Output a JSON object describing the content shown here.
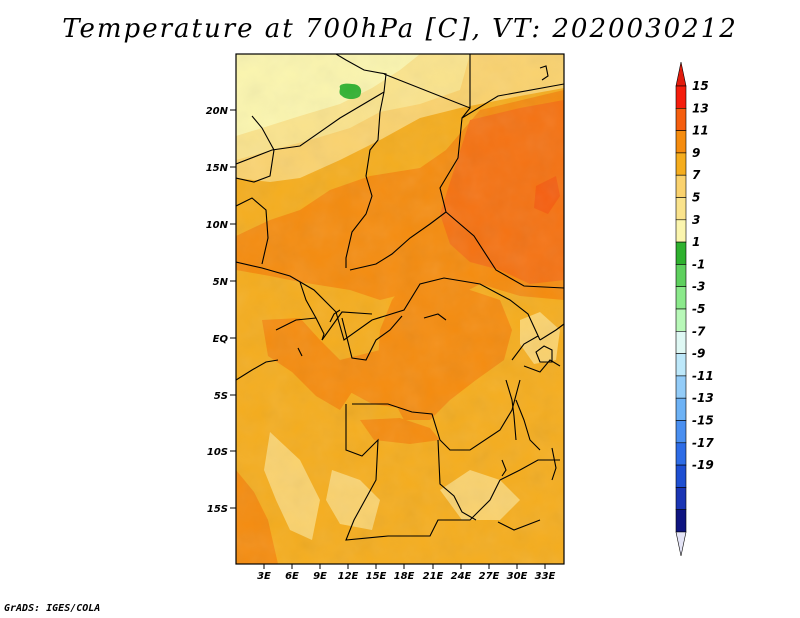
{
  "title": "Temperature at 700hPa [C], VT: 2020030212",
  "credit": "GrADS: IGES/COLA",
  "map": {
    "lat_labels": [
      "20N",
      "15N",
      "10N",
      "5N",
      "EQ",
      "5S",
      "10S",
      "15S"
    ],
    "lon_labels": [
      "3E",
      "6E",
      "9E",
      "12E",
      "15E",
      "18E",
      "21E",
      "24E",
      "27E",
      "30E",
      "33E"
    ],
    "dominant_range": "9 to 13 C"
  },
  "colorbar": {
    "labels": [
      "15",
      "13",
      "11",
      "9",
      "7",
      "5",
      "3",
      "1",
      "-1",
      "-3",
      "-5",
      "-7",
      "-9",
      "-11",
      "-13",
      "-15",
      "-17",
      "-19"
    ],
    "colors": [
      "#f51d0c",
      "#f55e0f",
      "#f58c0f",
      "#f5ad1e",
      "#fad26e",
      "#fae38c",
      "#fbf5ae",
      "#2fb12f",
      "#5ed05e",
      "#8be98b",
      "#b8f8b8",
      "#dff8f4",
      "#bde8fa",
      "#93ccf8",
      "#6db2f5",
      "#4a8ff0",
      "#2e6ce6",
      "#1e4fd2",
      "#1a35b4",
      "#0e1480"
    ],
    "top_arrow_color": "#e11b0c",
    "bottom_arrow_color": "#e4e4f6"
  }
}
